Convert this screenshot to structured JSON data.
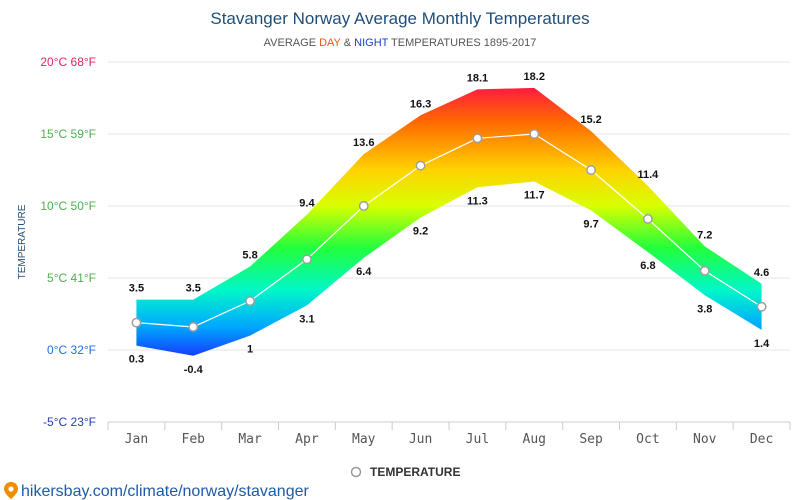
{
  "chart_data": {
    "type": "area",
    "title": "Stavanger Norway Average Monthly Temperatures",
    "subtitle": {
      "prefix": "AVERAGE ",
      "day": "DAY",
      "amp": " & ",
      "night": "NIGHT",
      "suffix": " TEMPERATURES 1895-2017"
    },
    "ylabel": "TEMPERATURE",
    "categories": [
      "Jan",
      "Feb",
      "Mar",
      "Apr",
      "May",
      "Jun",
      "Jul",
      "Aug",
      "Sep",
      "Oct",
      "Nov",
      "Dec"
    ],
    "series": [
      {
        "values": [
          3.5,
          3.5,
          5.8,
          9.4,
          13.6,
          16.3,
          18.1,
          18.2,
          15.2,
          11.4,
          7.2,
          4.6
        ]
      },
      {
        "values": [
          0.3,
          -0.4,
          1,
          3.1,
          6.4,
          9.2,
          11.3,
          11.7,
          9.7,
          6.8,
          3.8,
          1.4
        ]
      },
      {
        "name": "TEMPERATURE",
        "values": [
          1.9,
          1.6,
          3.4,
          6.3,
          10.0,
          12.8,
          14.7,
          15.0,
          12.5,
          9.1,
          5.5,
          3.0
        ]
      }
    ],
    "ylim": [
      -5,
      20
    ],
    "yticks": [
      {
        "value": 20,
        "label": "20°C 68°F",
        "color": "#e0245e"
      },
      {
        "value": 15,
        "label": "15°C 59°F",
        "color": "#4caf50"
      },
      {
        "value": 10,
        "label": "10°C 50°F",
        "color": "#4caf50"
      },
      {
        "value": 5,
        "label": "5°C 41°F",
        "color": "#4caf50"
      },
      {
        "value": 0,
        "label": "0°C 32°F",
        "color": "#1e6fd9"
      },
      {
        "value": -5,
        "label": "-5°C 23°F",
        "color": "#1e3fb0"
      }
    ],
    "grid": true,
    "legend_position": "bottom-center"
  },
  "source": "hikersbay.com/climate/norway/stavanger",
  "colors": {
    "title": "#1e4f7a",
    "day": "#e8590c",
    "night": "#1b3fbf",
    "source": "#1f5aa6",
    "pin": "#f08c00"
  }
}
